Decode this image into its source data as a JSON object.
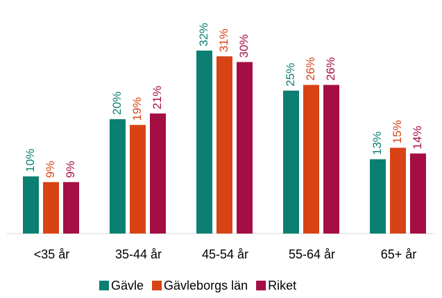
{
  "chart_data": {
    "type": "bar",
    "categories": [
      "<35 år",
      "35-44 år",
      "45-54 år",
      "55-64 år",
      "65+ år"
    ],
    "series": [
      {
        "name": "Gävle",
        "color": "#0b8072",
        "values": [
          10,
          20,
          32,
          25,
          13
        ],
        "value_labels": [
          "10%",
          "20%",
          "32%",
          "25%",
          "13%"
        ]
      },
      {
        "name": "Gävleborgs län",
        "color": "#d84315",
        "values": [
          9,
          19,
          31,
          26,
          15
        ],
        "value_labels": [
          "9%",
          "19%",
          "31%",
          "26%",
          "15%"
        ]
      },
      {
        "name": "Riket",
        "color": "#a50d45",
        "values": [
          9,
          21,
          30,
          26,
          14
        ],
        "value_labels": [
          "9%",
          "21%",
          "30%",
          "26%",
          "14%"
        ]
      }
    ],
    "legend": "bottom"
  }
}
